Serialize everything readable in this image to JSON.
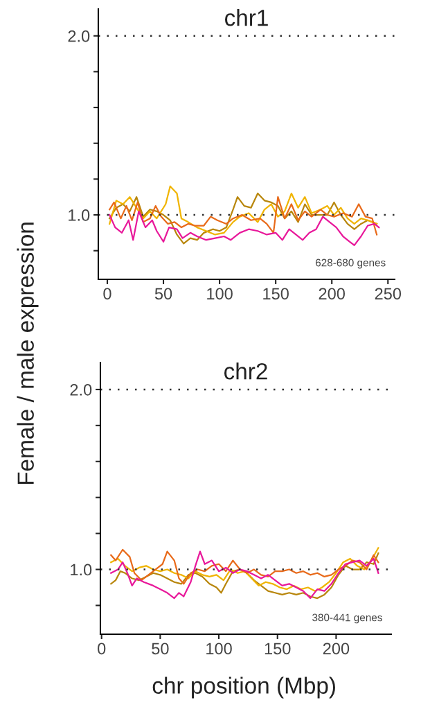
{
  "chart_data": [
    {
      "type": "line",
      "title": "chr1",
      "ylabel": "Female / male expression",
      "annotations": [
        "628-680 genes"
      ],
      "xlim": [
        -8,
        256
      ],
      "xticks": [
        0,
        50,
        100,
        150,
        200,
        250
      ],
      "ylim": [
        0.64,
        2.15
      ],
      "yticks": [
        {
          "value": 0.8,
          "label": null
        },
        {
          "value": 1.0,
          "label": "1.0"
        },
        {
          "value": 1.2,
          "label": null
        },
        {
          "value": 1.4,
          "label": null
        },
        {
          "value": 1.6,
          "label": null
        },
        {
          "value": 1.8,
          "label": null
        },
        {
          "value": 2.0,
          "label": "2.0"
        }
      ],
      "grid": false,
      "marker": "none",
      "line_style": "solid",
      "ref_lines": [
        {
          "axis": "y",
          "value": 1.0,
          "color": "#333333",
          "line_style": "dotted"
        },
        {
          "axis": "y",
          "value": 2.0,
          "color": "#333333",
          "line_style": "dotted"
        }
      ],
      "series": [
        {
          "color": "#b8860b",
          "x": [
            2,
            8,
            14,
            20,
            26,
            32,
            38,
            44,
            50,
            56,
            62,
            68,
            74,
            80,
            86,
            94,
            100,
            106,
            112,
            116,
            122,
            128,
            134,
            140,
            146,
            152,
            158,
            164,
            170,
            176,
            182,
            190,
            196,
            202,
            208,
            214,
            220,
            226,
            232,
            240
          ],
          "values": [
            0.98,
            1.04,
            1.06,
            1.02,
            1.1,
            0.99,
            1.03,
            1.02,
            1.0,
            0.97,
            0.89,
            0.84,
            0.87,
            0.86,
            0.9,
            0.92,
            0.91,
            0.93,
            1.03,
            1.1,
            1.05,
            1.04,
            1.12,
            1.08,
            1.07,
            1.05,
            0.98,
            1.02,
            0.96,
            1.06,
            1.0,
            1.0,
            1.0,
            1.07,
            1.0,
            0.95,
            0.92,
            0.95,
            0.97,
            0.95
          ]
        },
        {
          "color": "#f0b400",
          "x": [
            2,
            8,
            14,
            20,
            26,
            32,
            38,
            44,
            52,
            56,
            62,
            66,
            72,
            80,
            88,
            96,
            104,
            112,
            118,
            126,
            134,
            140,
            146,
            152,
            158,
            164,
            170,
            176,
            182,
            190,
            196,
            202,
            208,
            214,
            220,
            226,
            232,
            240
          ],
          "values": [
            0.95,
            1.08,
            1.06,
            1.1,
            1.04,
            0.98,
            1.02,
            0.98,
            1.06,
            1.16,
            1.12,
            0.98,
            0.96,
            0.93,
            0.91,
            0.89,
            0.9,
            0.96,
            0.99,
            1.01,
            0.96,
            1.03,
            1.06,
            0.99,
            1.02,
            1.12,
            1.04,
            1.1,
            1.01,
            1.03,
            1.05,
            1.0,
            1.04,
            0.98,
            0.95,
            0.98,
            0.97,
            0.95
          ]
        },
        {
          "color": "#e86a1a",
          "x": [
            2,
            6,
            12,
            17,
            22,
            27,
            32,
            38,
            43,
            48,
            54,
            60,
            66,
            72,
            78,
            86,
            92,
            98,
            106,
            112,
            120,
            128,
            136,
            142,
            148,
            152,
            158,
            164,
            170,
            176,
            182,
            190,
            196,
            202,
            210,
            218,
            224,
            230,
            236,
            240
          ],
          "values": [
            1.03,
            1.07,
            0.98,
            1.05,
            0.97,
            1.07,
            0.96,
            0.98,
            1.05,
            0.99,
            0.95,
            0.96,
            0.93,
            0.95,
            0.94,
            0.94,
            0.99,
            0.97,
            0.95,
            0.98,
            1.0,
            0.97,
            0.98,
            0.95,
            0.9,
            1.1,
            0.98,
            1.06,
            0.97,
            1.02,
            0.99,
            1.03,
            1.0,
            0.99,
            1.01,
            0.99,
            1.06,
            0.99,
            0.98,
            0.89
          ]
        },
        {
          "color": "#e8189a",
          "x": [
            2,
            7,
            13,
            19,
            23,
            28,
            34,
            40,
            44,
            50,
            55,
            62,
            67,
            74,
            80,
            88,
            96,
            104,
            110,
            118,
            126,
            134,
            142,
            150,
            156,
            162,
            168,
            174,
            180,
            186,
            192,
            198,
            204,
            210,
            216,
            220,
            226,
            232,
            238,
            242
          ],
          "values": [
            1.0,
            0.93,
            0.9,
            0.97,
            0.86,
            1.02,
            0.93,
            0.97,
            0.91,
            0.85,
            0.93,
            0.92,
            0.87,
            0.9,
            0.88,
            0.86,
            0.87,
            0.88,
            0.86,
            0.9,
            0.92,
            0.91,
            0.89,
            0.9,
            0.86,
            0.92,
            0.89,
            0.86,
            0.9,
            0.92,
            0.99,
            0.96,
            0.93,
            0.88,
            0.85,
            0.83,
            0.88,
            0.94,
            0.95,
            0.93
          ]
        }
      ]
    },
    {
      "type": "line",
      "title": "chr2",
      "xlabel": "chr position (Mbp)",
      "annotations": [
        "380-441 genes"
      ],
      "xlim": [
        -1,
        247
      ],
      "xticks": [
        0,
        50,
        100,
        150,
        200
      ],
      "ylim": [
        0.64,
        2.15
      ],
      "yticks": [
        {
          "value": 0.8,
          "label": null
        },
        {
          "value": 1.0,
          "label": "1.0"
        },
        {
          "value": 1.2,
          "label": null
        },
        {
          "value": 1.4,
          "label": null
        },
        {
          "value": 1.6,
          "label": null
        },
        {
          "value": 1.8,
          "label": null
        },
        {
          "value": 2.0,
          "label": "2.0"
        }
      ],
      "grid": false,
      "marker": "none",
      "line_style": "solid",
      "ref_lines": [
        {
          "axis": "y",
          "value": 1.0,
          "color": "#333333",
          "line_style": "dotted"
        },
        {
          "axis": "y",
          "value": 2.0,
          "color": "#333333",
          "line_style": "dotted"
        }
      ],
      "series": [
        {
          "color": "#b8860b",
          "x": [
            8,
            12,
            16,
            20,
            26,
            32,
            38,
            44,
            50,
            56,
            62,
            68,
            74,
            80,
            86,
            92,
            98,
            102,
            106,
            112,
            118,
            124,
            130,
            136,
            142,
            148,
            154,
            160,
            166,
            172,
            178,
            184,
            190,
            196,
            202,
            208,
            214,
            220,
            226,
            232,
            236
          ],
          "values": [
            0.92,
            0.94,
            0.99,
            0.98,
            0.95,
            0.94,
            0.96,
            0.98,
            0.97,
            0.95,
            0.93,
            0.92,
            0.97,
            0.98,
            0.96,
            0.92,
            0.9,
            0.87,
            0.92,
            0.99,
            1.0,
            0.98,
            0.94,
            0.91,
            0.88,
            0.87,
            0.86,
            0.87,
            0.86,
            0.87,
            0.85,
            0.84,
            0.86,
            0.9,
            0.97,
            1.02,
            1.0,
            1.0,
            1.04,
            1.03,
            1.09
          ]
        },
        {
          "color": "#f0b400",
          "x": [
            8,
            14,
            20,
            26,
            32,
            38,
            44,
            50,
            56,
            62,
            68,
            74,
            80,
            86,
            92,
            98,
            104,
            110,
            116,
            122,
            128,
            134,
            140,
            146,
            152,
            158,
            164,
            170,
            176,
            182,
            188,
            194,
            200,
            206,
            212,
            218,
            224,
            230,
            236
          ],
          "values": [
            1.04,
            1.06,
            1.02,
            0.99,
            1.01,
            1.02,
            1.0,
            0.99,
            1.0,
            0.98,
            0.97,
            0.95,
            0.99,
            0.97,
            0.96,
            0.97,
            0.94,
            1.0,
            0.98,
            0.99,
            0.95,
            0.91,
            0.93,
            0.92,
            0.9,
            0.89,
            0.91,
            0.89,
            0.9,
            0.88,
            0.9,
            0.93,
            0.98,
            1.04,
            1.06,
            1.02,
            1.0,
            1.05,
            1.12
          ]
        },
        {
          "color": "#e86a1a",
          "x": [
            8,
            12,
            18,
            24,
            28,
            34,
            40,
            46,
            52,
            56,
            62,
            66,
            70,
            76,
            82,
            88,
            94,
            100,
            106,
            112,
            118,
            124,
            130,
            136,
            142,
            148,
            154,
            160,
            166,
            172,
            178,
            184,
            190,
            196,
            202,
            208,
            214,
            220,
            226,
            232,
            236
          ],
          "values": [
            1.08,
            1.05,
            1.11,
            1.07,
            0.98,
            0.94,
            0.97,
            1.0,
            1.03,
            1.1,
            1.05,
            0.95,
            0.92,
            0.98,
            1.0,
            0.99,
            1.02,
            1.03,
            0.99,
            1.05,
            1.0,
            0.98,
            1.0,
            0.97,
            0.96,
            0.99,
            0.99,
            1.0,
            0.98,
            0.99,
            0.97,
            0.98,
            0.96,
            0.97,
            1.0,
            1.02,
            1.05,
            1.04,
            1.0,
            1.08,
            1.04
          ]
        },
        {
          "color": "#e8189a",
          "x": [
            8,
            14,
            18,
            22,
            26,
            30,
            36,
            44,
            50,
            56,
            62,
            66,
            70,
            76,
            80,
            84,
            88,
            94,
            100,
            106,
            112,
            118,
            124,
            130,
            136,
            142,
            148,
            154,
            160,
            166,
            172,
            178,
            184,
            190,
            196,
            202,
            208,
            214,
            220,
            226,
            232,
            236
          ],
          "values": [
            0.98,
            1.0,
            1.04,
            0.98,
            0.91,
            0.95,
            0.93,
            0.91,
            0.89,
            0.87,
            0.84,
            0.87,
            0.85,
            0.93,
            1.02,
            1.1,
            1.03,
            1.05,
            0.99,
            1.01,
            0.98,
            1.0,
            0.99,
            0.97,
            0.95,
            0.97,
            0.94,
            0.91,
            0.92,
            0.9,
            0.88,
            0.84,
            0.89,
            0.88,
            0.92,
            0.98,
            1.03,
            1.04,
            1.05,
            1.02,
            1.06,
            0.98
          ]
        }
      ]
    }
  ]
}
